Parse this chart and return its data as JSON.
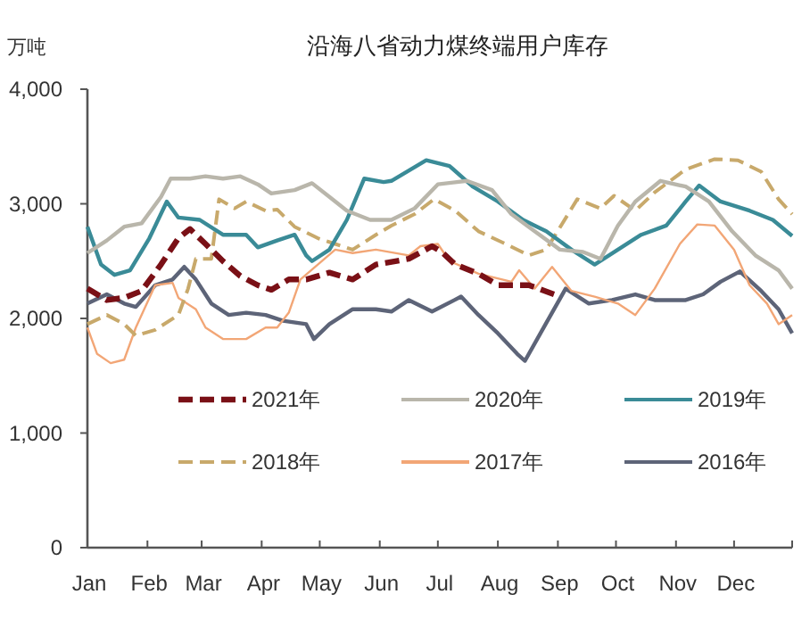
{
  "chart_data": {
    "type": "line",
    "title": "沿海八省动力煤终端用户库存",
    "ylabel": "万吨",
    "xlim": [
      "--01-01",
      "--12-31"
    ],
    "xticks": [
      {
        "value": "--01-01",
        "label": "Jan"
      },
      {
        "value": "--02-01",
        "label": "Feb"
      },
      {
        "value": "--03-01",
        "label": "Mar"
      },
      {
        "value": "--04-01",
        "label": "Apr"
      },
      {
        "value": "--05-01",
        "label": "May"
      },
      {
        "value": "--06-01",
        "label": "Jun"
      },
      {
        "value": "--07-01",
        "label": "Jul"
      },
      {
        "value": "--08-01",
        "label": "Aug"
      },
      {
        "value": "--09-01",
        "label": "Sep"
      },
      {
        "value": "--10-01",
        "label": "Oct"
      },
      {
        "value": "--11-01",
        "label": "Nov"
      },
      {
        "value": "--12-01",
        "label": "Dec"
      },
      {
        "value": "--12-31",
        "label": null
      }
    ],
    "ylim": [
      0,
      4000
    ],
    "yticks": [
      {
        "value": 0,
        "label": "0"
      },
      {
        "value": 1000,
        "label": "1,000"
      },
      {
        "value": 2000,
        "label": "2,000"
      },
      {
        "value": 3000,
        "label": "3,000"
      },
      {
        "value": 4000,
        "label": "4,000"
      }
    ],
    "legend": "bottom",
    "series": [
      {
        "name": "2021年",
        "color": "#7a1016",
        "line_style": "dashed",
        "x": [
          "--01-01",
          "--01-11",
          "--01-20",
          "--01-29",
          "--02-08",
          "--02-17",
          "--02-23",
          "--03-03",
          "--03-12",
          "--03-21",
          "--03-30",
          "--04-06",
          "--04-15",
          "--04-24",
          "--05-06",
          "--05-18",
          "--05-30",
          "--06-16",
          "--06-28",
          "--07-03",
          "--07-10",
          "--07-22",
          "--08-01",
          "--08-17",
          "--08-30"
        ],
        "values": [
          2260,
          2160,
          2180,
          2240,
          2470,
          2700,
          2780,
          2650,
          2500,
          2370,
          2290,
          2250,
          2340,
          2340,
          2400,
          2340,
          2470,
          2520,
          2630,
          2580,
          2470,
          2390,
          2290,
          2290,
          2210
        ]
      },
      {
        "name": "2020年",
        "color": "#b9b6ab",
        "x": [
          "--01-01",
          "--01-11",
          "--01-20",
          "--01-29",
          "--02-08",
          "--02-13",
          "--02-23",
          "--03-03",
          "--03-12",
          "--03-21",
          "--03-30",
          "--04-06",
          "--04-18",
          "--04-27",
          "--05-06",
          "--05-15",
          "--05-27",
          "--06-07",
          "--06-19",
          "--07-01",
          "--07-16",
          "--07-29",
          "--08-08",
          "--08-20",
          "--09-02",
          "--09-14",
          "--09-23",
          "--10-02",
          "--10-11",
          "--10-24",
          "--11-06",
          "--11-18",
          "--11-30",
          "--12-12",
          "--12-24",
          "--12-31"
        ],
        "values": [
          2570,
          2680,
          2800,
          2830,
          3060,
          3220,
          3220,
          3240,
          3220,
          3240,
          3170,
          3090,
          3120,
          3180,
          3060,
          2940,
          2860,
          2860,
          2960,
          3170,
          3200,
          3120,
          2910,
          2760,
          2600,
          2580,
          2520,
          2810,
          3020,
          3200,
          3150,
          3020,
          2760,
          2550,
          2420,
          2260
        ]
      },
      {
        "name": "2019年",
        "color": "#3a8b97",
        "x": [
          "--01-01",
          "--01-08",
          "--01-15",
          "--01-23",
          "--02-02",
          "--02-11",
          "--02-17",
          "--02-28",
          "--03-12",
          "--03-24",
          "--03-30",
          "--04-09",
          "--04-18",
          "--04-24",
          "--04-27",
          "--05-06",
          "--05-15",
          "--05-24",
          "--06-03",
          "--06-07",
          "--06-25",
          "--07-07",
          "--07-19",
          "--08-01",
          "--08-14",
          "--08-26",
          "--09-08",
          "--09-20",
          "--10-02",
          "--10-14",
          "--10-27",
          "--11-06",
          "--11-13",
          "--11-24",
          "--12-09",
          "--12-21",
          "--12-31"
        ],
        "values": [
          2800,
          2470,
          2380,
          2420,
          2700,
          3020,
          2880,
          2860,
          2730,
          2730,
          2620,
          2680,
          2730,
          2550,
          2500,
          2600,
          2860,
          3220,
          3190,
          3200,
          3380,
          3330,
          3150,
          3020,
          2860,
          2760,
          2600,
          2470,
          2600,
          2730,
          2810,
          3020,
          3160,
          3020,
          2940,
          2860,
          2720
        ]
      },
      {
        "name": "2018年",
        "color": "#c8a96b",
        "line_style": "dashed",
        "x": [
          "--01-01",
          "--01-11",
          "--01-20",
          "--01-26",
          "--02-05",
          "--02-17",
          "--02-22",
          "--02-26",
          "--03-06",
          "--03-10",
          "--03-18",
          "--03-24",
          "--04-03",
          "--04-09",
          "--04-18",
          "--04-30",
          "--05-09",
          "--05-18",
          "--05-30",
          "--06-07",
          "--06-19",
          "--06-29",
          "--07-10",
          "--07-22",
          "--08-05",
          "--08-17",
          "--08-26",
          "--09-11",
          "--09-23",
          "--09-30",
          "--10-11",
          "--10-21",
          "--11-06",
          "--11-21",
          "--12-03",
          "--12-15",
          "--12-24",
          "--12-31"
        ],
        "values": [
          1950,
          2030,
          1950,
          1850,
          1900,
          2030,
          2260,
          2520,
          2520,
          3040,
          2960,
          3020,
          2940,
          2950,
          2800,
          2700,
          2650,
          2600,
          2730,
          2810,
          2910,
          3040,
          2940,
          2760,
          2650,
          2550,
          2600,
          3040,
          2960,
          3070,
          2940,
          3100,
          3300,
          3390,
          3380,
          3280,
          3040,
          2910
        ]
      },
      {
        "name": "2017年",
        "color": "#f2a676",
        "x": [
          "--01-01",
          "--01-06",
          "--01-13",
          "--01-20",
          "--01-26",
          "--02-05",
          "--02-14",
          "--02-17",
          "--02-26",
          "--03-03",
          "--03-12",
          "--03-24",
          "--04-03",
          "--04-09",
          "--04-15",
          "--04-21",
          "--04-30",
          "--05-09",
          "--05-18",
          "--05-30",
          "--06-16",
          "--06-22",
          "--07-01",
          "--07-07",
          "--07-22",
          "--08-08",
          "--08-12",
          "--08-20",
          "--08-29",
          "--09-08",
          "--09-20",
          "--10-02",
          "--10-11",
          "--10-21",
          "--11-03",
          "--11-12",
          "--11-21",
          "--12-01",
          "--12-09",
          "--12-18",
          "--12-24",
          "--12-31"
        ],
        "values": [
          1920,
          1690,
          1610,
          1640,
          1920,
          2290,
          2310,
          2180,
          2080,
          1920,
          1820,
          1820,
          1920,
          1920,
          2050,
          2340,
          2470,
          2600,
          2570,
          2600,
          2550,
          2630,
          2650,
          2500,
          2390,
          2320,
          2420,
          2260,
          2450,
          2240,
          2190,
          2130,
          2030,
          2260,
          2650,
          2820,
          2810,
          2600,
          2290,
          2130,
          1950,
          2030
        ]
      },
      {
        "name": "2016年",
        "color": "#5d6478",
        "x": [
          "--01-01",
          "--01-11",
          "--01-20",
          "--01-26",
          "--02-05",
          "--02-14",
          "--02-20",
          "--02-26",
          "--03-06",
          "--03-15",
          "--03-24",
          "--04-03",
          "--04-12",
          "--04-24",
          "--04-28",
          "--05-06",
          "--05-18",
          "--05-30",
          "--06-07",
          "--06-16",
          "--06-28",
          "--07-13",
          "--07-22",
          "--08-01",
          "--08-11",
          "--08-15",
          "--08-23",
          "--09-05",
          "--09-17",
          "--09-29",
          "--10-11",
          "--10-21",
          "--11-06",
          "--11-15",
          "--11-24",
          "--12-04",
          "--12-15",
          "--12-24",
          "--12-31"
        ],
        "values": [
          2130,
          2210,
          2130,
          2100,
          2290,
          2340,
          2450,
          2340,
          2130,
          2030,
          2050,
          2030,
          1980,
          1950,
          1820,
          1950,
          2080,
          2080,
          2060,
          2160,
          2060,
          2190,
          2030,
          1870,
          1690,
          1630,
          1870,
          2260,
          2130,
          2160,
          2210,
          2160,
          2160,
          2210,
          2320,
          2410,
          2240,
          2080,
          1870
        ]
      }
    ]
  }
}
